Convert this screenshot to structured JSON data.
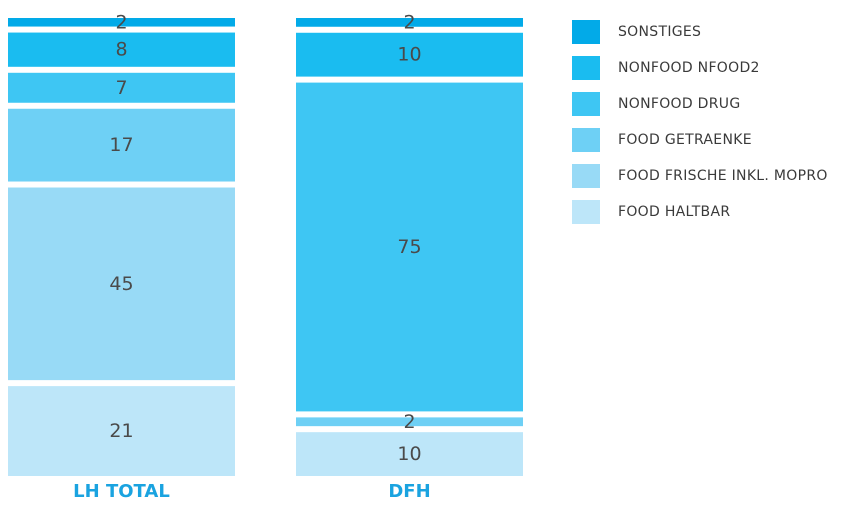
{
  "chart_data": {
    "type": "bar",
    "stacked": true,
    "normalized_percent": true,
    "categories": [
      "LH TOTAL",
      "DFH"
    ],
    "series": [
      {
        "name": "FOOD HALTBAR",
        "values": [
          21,
          10
        ],
        "color": "#bde6f9"
      },
      {
        "name": "FOOD FRISCHE INKL. MOPRO",
        "values": [
          45,
          0
        ],
        "color": "#98daf6"
      },
      {
        "name": "FOOD GETRAENKE",
        "values": [
          17,
          2
        ],
        "color": "#6ed0f5"
      },
      {
        "name": "NONFOOD DRUG",
        "values": [
          7,
          75
        ],
        "color": "#3ec6f3"
      },
      {
        "name": "NONFOOD NFOOD2",
        "values": [
          8,
          10
        ],
        "color": "#1abcf0"
      },
      {
        "name": "SONSTIGES",
        "values": [
          2,
          2
        ],
        "color": "#02aae8"
      }
    ],
    "legend_order": [
      "SONSTIGES",
      "NONFOOD NFOOD2",
      "NONFOOD DRUG",
      "FOOD GETRAENKE",
      "FOOD FRISCHE INKL. MOPRO",
      "FOOD HALTBAR"
    ],
    "legend_position": "right",
    "grid": false,
    "category_label_color": "#1aa3e0"
  }
}
